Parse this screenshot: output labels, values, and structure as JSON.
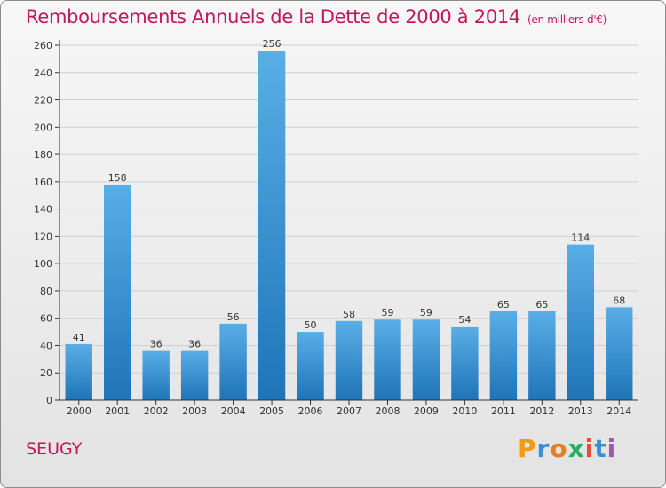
{
  "chart_data": {
    "type": "bar",
    "title": "Remboursements Annuels de la Dette de 2000 à 2014",
    "subtitle": "(en milliers d'€)",
    "categories": [
      "2000",
      "2001",
      "2002",
      "2003",
      "2004",
      "2005",
      "2006",
      "2007",
      "2008",
      "2009",
      "2010",
      "2011",
      "2012",
      "2013",
      "2014"
    ],
    "values": [
      41,
      158,
      36,
      36,
      56,
      256,
      50,
      58,
      59,
      59,
      54,
      65,
      65,
      114,
      68
    ],
    "ylim": [
      0,
      260
    ],
    "yticks": [
      0,
      20,
      40,
      60,
      80,
      100,
      120,
      140,
      160,
      180,
      200,
      220,
      240,
      260
    ],
    "grid": true,
    "bar_color_top": "#5aaee6",
    "bar_color_bottom": "#1f74b8",
    "axis_color": "#333333"
  },
  "footer": {
    "commune": "SEUGY",
    "logo": "Proxiti",
    "logo_colors": [
      "#f39c12",
      "#3b8ed3",
      "#e67e22",
      "#27ae60",
      "#e74c3c",
      "#3b8ed3",
      "#9b59b6"
    ]
  }
}
